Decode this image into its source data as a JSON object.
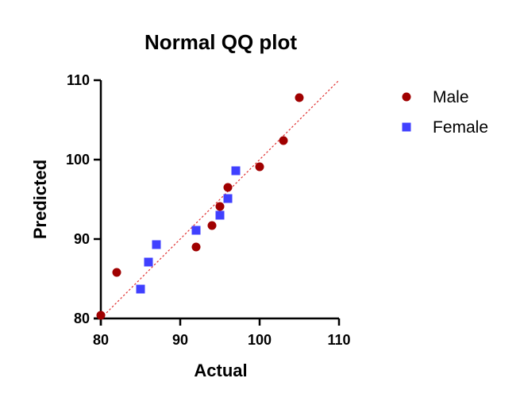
{
  "chart_data": {
    "type": "scatter",
    "title": "Normal QQ plot",
    "xlabel": "Actual",
    "ylabel": "Predicted",
    "xlim": [
      80,
      110
    ],
    "ylim": [
      80,
      110
    ],
    "x_ticks": [
      80,
      90,
      100,
      110
    ],
    "y_ticks": [
      80,
      90,
      100,
      110
    ],
    "x_tick_labels": [
      "80",
      "90",
      "100",
      "110"
    ],
    "y_tick_labels": [
      "80",
      "90",
      "100",
      "110"
    ],
    "grid": false,
    "legend_position": "top-right",
    "reference_line": {
      "style": "dotted",
      "color": "#e03030",
      "from": [
        80,
        80
      ],
      "to": [
        110,
        110
      ]
    },
    "series": [
      {
        "name": "Male",
        "marker": "circle",
        "color": "#a00000",
        "points": [
          [
            80,
            80.4
          ],
          [
            82,
            85.8
          ],
          [
            92,
            89.0
          ],
          [
            94,
            91.7
          ],
          [
            95,
            94.1
          ],
          [
            96,
            96.5
          ],
          [
            100,
            99.1
          ],
          [
            103,
            102.4
          ],
          [
            105,
            107.8
          ]
        ]
      },
      {
        "name": "Female",
        "marker": "square",
        "color": "#4040ff",
        "points": [
          [
            85,
            83.7
          ],
          [
            86,
            87.1
          ],
          [
            87,
            89.3
          ],
          [
            92,
            91.1
          ],
          [
            95,
            93.0
          ],
          [
            96,
            95.1
          ],
          [
            97,
            98.6
          ]
        ]
      }
    ]
  }
}
